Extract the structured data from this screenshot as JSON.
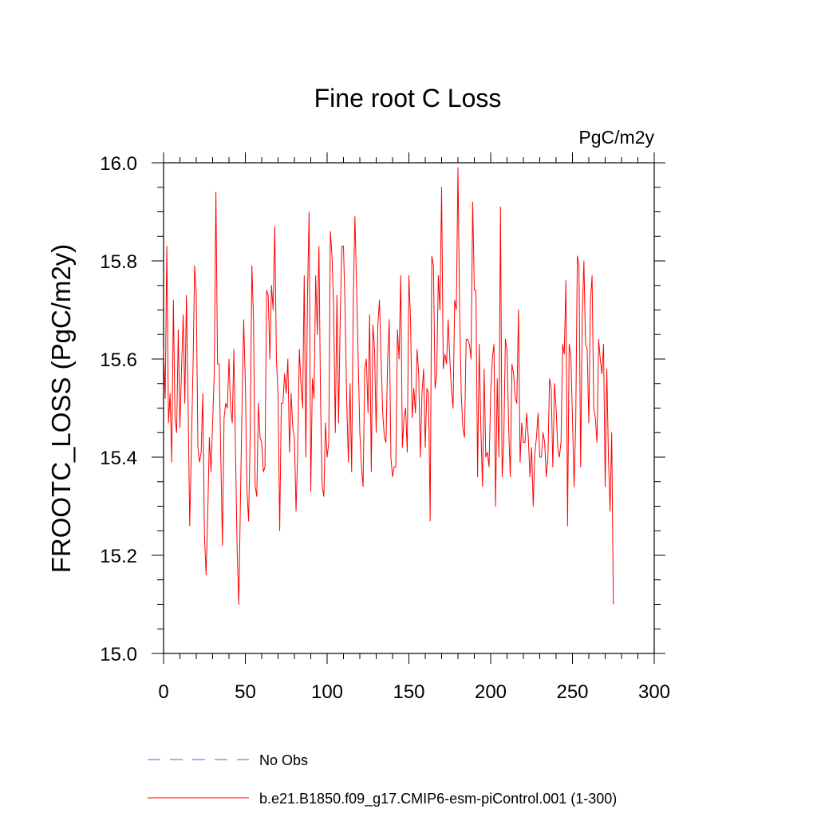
{
  "chart_data": {
    "type": "line",
    "title": "Fine root C Loss",
    "units_label": "PgC/m2y",
    "ylabel": "FROOTC_LOSS  (PgC/m2y)",
    "xlabel": "",
    "xlim": [
      0,
      300
    ],
    "ylim": [
      15.0,
      16.0
    ],
    "x_ticks": [
      0,
      50,
      100,
      150,
      200,
      250,
      300
    ],
    "x_tick_labels": [
      "0",
      "50",
      "100",
      "150",
      "200",
      "250",
      "300"
    ],
    "y_ticks": [
      15.0,
      15.2,
      15.4,
      15.6,
      15.8,
      16.0
    ],
    "y_tick_labels": [
      "15.0",
      "15.2",
      "15.4",
      "15.6",
      "15.8",
      "16.0"
    ],
    "grid": false,
    "legend_position": "bottom-left, below plot",
    "series": [
      {
        "name": "b.e21.B1850.f09_g17.CMIP6-esm-piControl.001 (1-300)",
        "color": "#ff0000",
        "style": "solid",
        "x_start": 0,
        "x_step": 1,
        "values": [
          15.62,
          15.52,
          15.83,
          15.47,
          15.53,
          15.39,
          15.72,
          15.48,
          15.45,
          15.66,
          15.46,
          15.58,
          15.69,
          15.51,
          15.73,
          15.51,
          15.26,
          15.42,
          15.58,
          15.79,
          15.73,
          15.42,
          15.39,
          15.41,
          15.53,
          15.24,
          15.16,
          15.28,
          15.44,
          15.37,
          15.47,
          15.57,
          15.94,
          15.59,
          15.59,
          15.4,
          15.22,
          15.48,
          15.51,
          15.5,
          15.6,
          15.5,
          15.47,
          15.62,
          15.41,
          15.21,
          15.1,
          15.31,
          15.51,
          15.68,
          15.55,
          15.33,
          15.27,
          15.45,
          15.79,
          15.68,
          15.34,
          15.32,
          15.51,
          15.44,
          15.43,
          15.37,
          15.38,
          15.74,
          15.73,
          15.6,
          15.75,
          15.7,
          15.87,
          15.6,
          15.53,
          15.25,
          15.51,
          15.51,
          15.57,
          15.53,
          15.6,
          15.41,
          15.53,
          15.46,
          15.44,
          15.29,
          15.41,
          15.62,
          15.55,
          15.5,
          15.77,
          15.4,
          15.73,
          15.9,
          15.33,
          15.56,
          15.52,
          15.77,
          15.65,
          15.83,
          15.51,
          15.34,
          15.32,
          15.47,
          15.4,
          15.43,
          15.86,
          15.81,
          15.7,
          15.45,
          15.73,
          15.47,
          15.68,
          15.83,
          15.83,
          15.7,
          15.51,
          15.39,
          15.55,
          15.37,
          15.72,
          15.89,
          15.75,
          15.6,
          15.45,
          15.38,
          15.34,
          15.58,
          15.6,
          15.49,
          15.69,
          15.37,
          15.67,
          15.62,
          15.45,
          15.67,
          15.72,
          15.6,
          15.49,
          15.44,
          15.43,
          15.6,
          15.68,
          15.4,
          15.36,
          15.38,
          15.38,
          15.66,
          15.6,
          15.77,
          15.42,
          15.48,
          15.5,
          15.41,
          15.77,
          15.68,
          15.48,
          15.54,
          15.49,
          15.62,
          15.57,
          15.4,
          15.53,
          15.58,
          15.42,
          15.54,
          15.53,
          15.27,
          15.81,
          15.79,
          15.54,
          15.57,
          15.77,
          15.7,
          15.95,
          15.58,
          15.61,
          15.59,
          15.68,
          15.6,
          15.54,
          15.5,
          15.72,
          15.7,
          15.99,
          15.7,
          15.53,
          15.46,
          15.44,
          15.64,
          15.64,
          15.63,
          15.6,
          15.92,
          15.74,
          15.74,
          15.36,
          15.63,
          15.46,
          15.34,
          15.58,
          15.4,
          15.41,
          15.38,
          15.53,
          15.6,
          15.63,
          15.3,
          15.56,
          15.4,
          15.91,
          15.36,
          15.43,
          15.64,
          15.62,
          15.46,
          15.36,
          15.59,
          15.57,
          15.52,
          15.51,
          15.7,
          15.39,
          15.47,
          15.43,
          15.43,
          15.49,
          15.44,
          15.36,
          15.42,
          15.3,
          15.41,
          15.44,
          15.49,
          15.4,
          15.4,
          15.45,
          15.43,
          15.36,
          15.4,
          15.56,
          15.54,
          15.38,
          15.55,
          15.5,
          15.42,
          15.4,
          15.43,
          15.63,
          15.61,
          15.76,
          15.26,
          15.63,
          15.61,
          15.48,
          15.34,
          15.47,
          15.81,
          15.79,
          15.38,
          15.69,
          15.8,
          15.63,
          15.62,
          15.47,
          15.72,
          15.77,
          15.5,
          15.48,
          15.43,
          15.64,
          15.6,
          15.57,
          15.63,
          15.34,
          15.58,
          15.4,
          15.29,
          15.45,
          15.1
        ]
      }
    ],
    "legend_entries": [
      {
        "label": "No Obs",
        "color": "#6a5acd",
        "style": "dashed"
      },
      {
        "label": "b.e21.B1850.f09_g17.CMIP6-esm-piControl.001 (1-300)",
        "color": "#ff0000",
        "style": "solid"
      }
    ]
  }
}
